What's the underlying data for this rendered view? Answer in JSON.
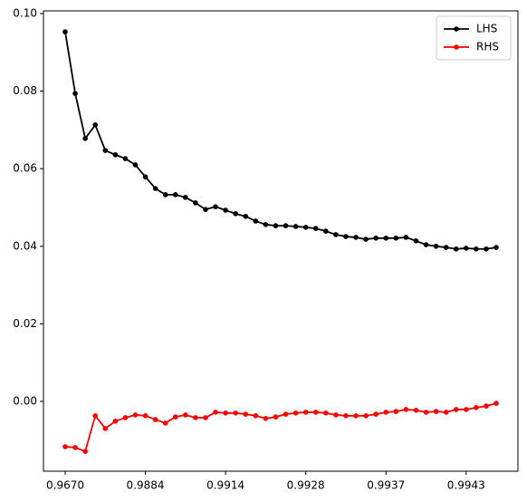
{
  "chart_data": {
    "type": "line",
    "categories": [
      "0.9670",
      null,
      null,
      null,
      null,
      null,
      null,
      null,
      "0.9884",
      null,
      null,
      null,
      null,
      null,
      null,
      null,
      "0.9914",
      null,
      null,
      null,
      null,
      null,
      null,
      null,
      "0.9928",
      null,
      null,
      null,
      null,
      null,
      null,
      null,
      "0.9937",
      null,
      null,
      null,
      null,
      null,
      null,
      null,
      "0.9943",
      null,
      null,
      null
    ],
    "series": [
      {
        "name": "LHS",
        "color": "#000000",
        "values": [
          0.0953,
          0.0794,
          0.0678,
          0.0713,
          0.0647,
          0.0636,
          0.0626,
          0.061,
          0.0579,
          0.0549,
          0.0533,
          0.0533,
          0.0526,
          0.0512,
          0.0495,
          0.0502,
          0.0493,
          0.0484,
          0.0477,
          0.0465,
          0.0456,
          0.0453,
          0.0453,
          0.0451,
          0.0449,
          0.0446,
          0.0439,
          0.043,
          0.0425,
          0.0423,
          0.0418,
          0.0421,
          0.0421,
          0.0421,
          0.0423,
          0.0414,
          0.0404,
          0.04,
          0.0397,
          0.0393,
          0.0395,
          0.0393,
          0.0393,
          0.0397
        ]
      },
      {
        "name": "RHS",
        "color": "#ff0000",
        "values": [
          -0.0117,
          -0.0119,
          -0.0129,
          -0.0037,
          -0.007,
          -0.0051,
          -0.0042,
          -0.0035,
          -0.0037,
          -0.0047,
          -0.0056,
          -0.004,
          -0.0035,
          -0.0042,
          -0.0042,
          -0.0028,
          -0.003,
          -0.003,
          -0.0033,
          -0.0037,
          -0.0044,
          -0.004,
          -0.0033,
          -0.003,
          -0.0028,
          -0.0028,
          -0.003,
          -0.0035,
          -0.0037,
          -0.0037,
          -0.0037,
          -0.0033,
          -0.0028,
          -0.0026,
          -0.0021,
          -0.0023,
          -0.0028,
          -0.0026,
          -0.0028,
          -0.0021,
          -0.0021,
          -0.0016,
          -0.0012,
          -0.0005
        ]
      }
    ],
    "ylim": [
      -0.018,
      0.1007
    ],
    "yticks": [
      {
        "value": 0,
        "label": "0.00"
      },
      {
        "value": 0.02,
        "label": "0.02"
      },
      {
        "value": 0.04,
        "label": "0.04"
      },
      {
        "value": 0.06,
        "label": "0.06"
      },
      {
        "value": 0.08,
        "label": "0.08"
      },
      {
        "value": 0.1,
        "label": "0.10"
      }
    ],
    "legend": "upper right",
    "grid": false
  }
}
